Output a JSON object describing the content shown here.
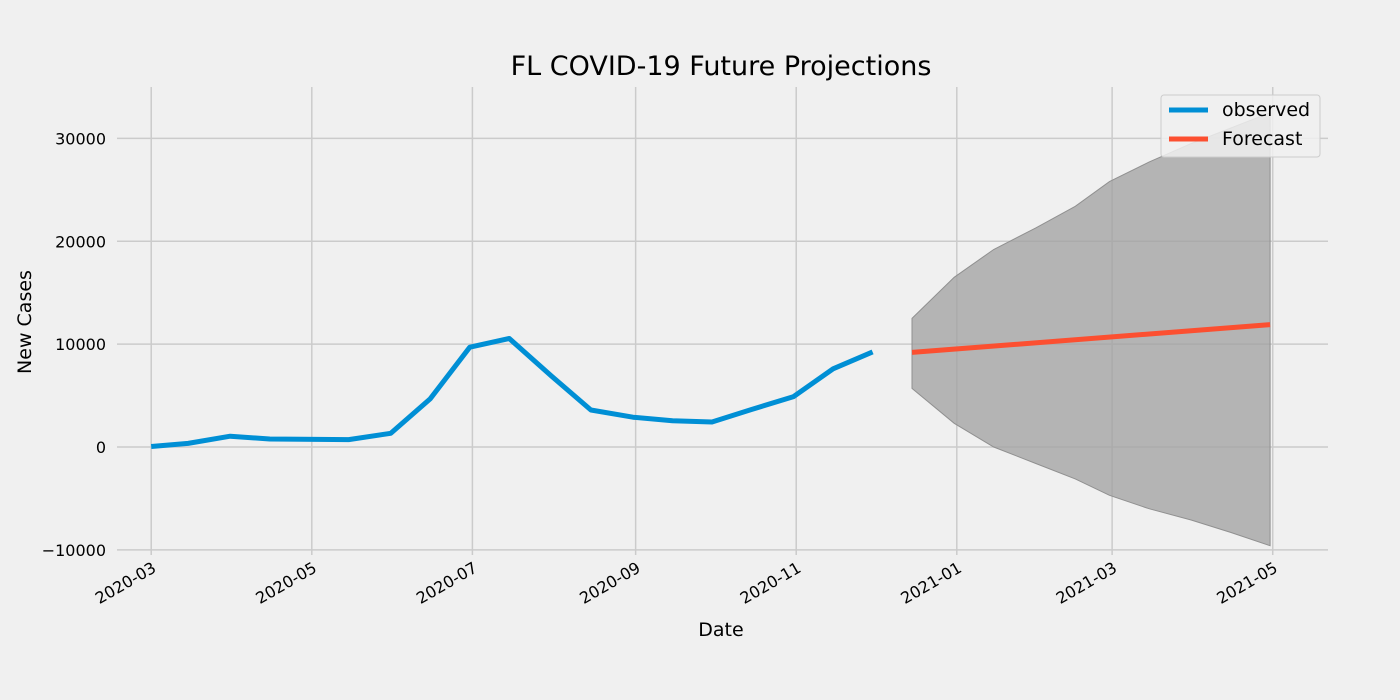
{
  "chart_data": {
    "type": "line",
    "title": "FL COVID-19 Future Projections",
    "xlabel": "Date",
    "ylabel": "New Cases",
    "xlim": [
      "2020-02-17",
      "2021-05-22"
    ],
    "ylim": [
      -10500,
      35000
    ],
    "x_ticks": [
      "2020-03",
      "2020-05",
      "2020-07",
      "2020-09",
      "2020-11",
      "2021-01",
      "2021-03",
      "2021-05"
    ],
    "y_ticks": [
      -10000,
      0,
      10000,
      20000,
      30000
    ],
    "grid": true,
    "legend_position": "top-right",
    "colors": {
      "background": "#f0f0f0",
      "grid": "#cbcbcb",
      "observed": "#008fd5",
      "forecast": "#fc4f30",
      "interval": "#a0a0a0"
    },
    "series": [
      {
        "name": "observed",
        "color": "#008fd5",
        "points": [
          {
            "date": "2020-03-01",
            "value": 50
          },
          {
            "date": "2020-03-15",
            "value": 350
          },
          {
            "date": "2020-03-31",
            "value": 1050
          },
          {
            "date": "2020-04-15",
            "value": 780
          },
          {
            "date": "2020-05-15",
            "value": 720
          },
          {
            "date": "2020-05-31",
            "value": 1330
          },
          {
            "date": "2020-06-15",
            "value": 4700
          },
          {
            "date": "2020-06-30",
            "value": 9700
          },
          {
            "date": "2020-07-15",
            "value": 10550
          },
          {
            "date": "2020-07-31",
            "value": 6900
          },
          {
            "date": "2020-08-15",
            "value": 3600
          },
          {
            "date": "2020-08-31",
            "value": 2900
          },
          {
            "date": "2020-09-15",
            "value": 2550
          },
          {
            "date": "2020-09-30",
            "value": 2430
          },
          {
            "date": "2020-10-15",
            "value": 3650
          },
          {
            "date": "2020-10-31",
            "value": 4900
          },
          {
            "date": "2020-11-15",
            "value": 7600
          },
          {
            "date": "2020-11-30",
            "value": 9250
          }
        ]
      },
      {
        "name": "Forecast",
        "color": "#fc4f30",
        "points": [
          {
            "date": "2020-12-15",
            "value": 9200
          },
          {
            "date": "2021-04-30",
            "value": 11900
          }
        ]
      }
    ],
    "confidence_interval": {
      "points": [
        {
          "date": "2020-12-15",
          "lower": 5700,
          "upper": 12500
        },
        {
          "date": "2020-12-31",
          "lower": 2300,
          "upper": 16500
        },
        {
          "date": "2021-01-15",
          "lower": 0,
          "upper": 19200
        },
        {
          "date": "2021-01-31",
          "lower": -1600,
          "upper": 21300
        },
        {
          "date": "2021-02-15",
          "lower": -3100,
          "upper": 23400
        },
        {
          "date": "2021-02-28",
          "lower": -4700,
          "upper": 25800
        },
        {
          "date": "2021-03-15",
          "lower": -6000,
          "upper": 27700
        },
        {
          "date": "2021-03-31",
          "lower": -7100,
          "upper": 29500
        },
        {
          "date": "2021-04-15",
          "lower": -8300,
          "upper": 31000
        },
        {
          "date": "2021-04-30",
          "lower": -9600,
          "upper": 32500
        }
      ]
    }
  }
}
